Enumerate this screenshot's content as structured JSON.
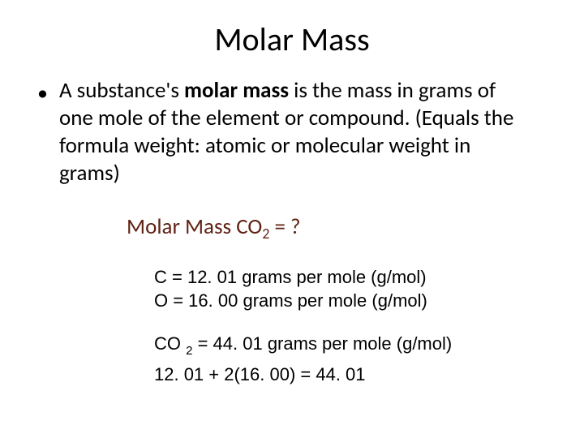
{
  "title": "Molar Mass",
  "bullet": {
    "pre": "A substance's ",
    "bold": "molar mass",
    "post": " is the mass in grams of one mole of the element or compound. (Equals the formula weight: atomic or molecular weight in grams)"
  },
  "question": {
    "label_pre": "Molar Mass CO",
    "subscript": "2",
    "label_post": "  =  ?",
    "color": "#602214",
    "fontsize": 27
  },
  "facts": {
    "line1": "C = 12. 01 grams per mole (g/mol)",
    "line2": "O = 16. 00 grams per mole (g/mol)"
  },
  "result": {
    "line1_pre": "CO ",
    "line1_sub": "2",
    "line1_post": " = 44. 01 grams per mole (g/mol)",
    "line2": "12. 01 + 2(16. 00) = 44. 01"
  },
  "style": {
    "background_color": "#ffffff",
    "title_fontsize": 40,
    "body_fontsize": 27,
    "facts_fontsize": 22,
    "text_color": "#000000"
  }
}
